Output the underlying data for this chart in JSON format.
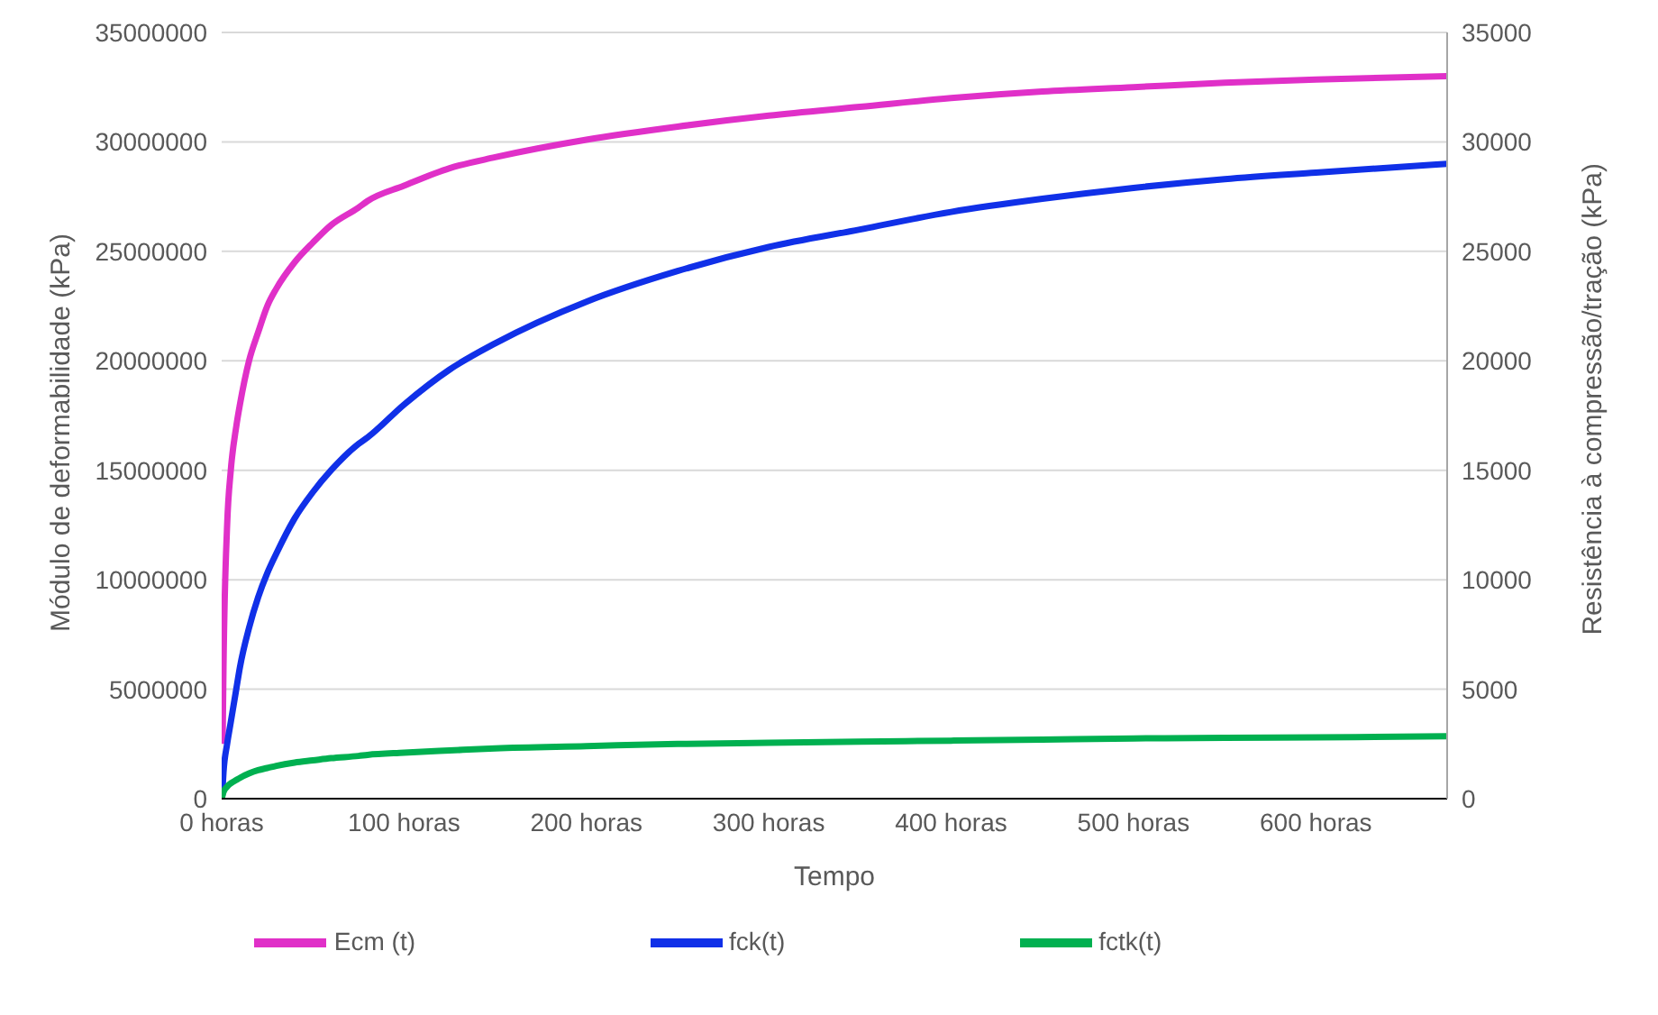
{
  "chart_data": {
    "type": "line",
    "xlabel": "Tempo",
    "ylabel": "Módulo de deformabilidade (kPa)",
    "y2label": "Resistência à compressão/tração (kPa)",
    "x": [
      0,
      0.5,
      1,
      3,
      5,
      8,
      10,
      15,
      20,
      25,
      30,
      40,
      50,
      60,
      75,
      80,
      100,
      125,
      150,
      200,
      250,
      300,
      350,
      400,
      450,
      500,
      550,
      600,
      672
    ],
    "series": [
      {
        "name": "Ecm (t)",
        "color": "#e030c8",
        "values": [
          null,
          2500000,
          6000000,
          12500000,
          15000000,
          17000000,
          18000000,
          20000000,
          21300000,
          22500000,
          23300000,
          24500000,
          25400000,
          26200000,
          27000000,
          27300000,
          28000000,
          28800000,
          29300000,
          30100000,
          30700000,
          31200000,
          31600000,
          32000000,
          32300000,
          32500000,
          32700000,
          32850000,
          33000000
        ]
      },
      {
        "name": "fck(t)",
        "color": "#1030e8",
        "axis": "y2",
        "values": [
          0,
          500,
          1200,
          2500,
          3500,
          5000,
          6000,
          7800,
          9200,
          10300,
          11200,
          12800,
          14000,
          15000,
          16200,
          16500,
          18000,
          19600,
          20800,
          22700,
          24100,
          25200,
          26000,
          26800,
          27400,
          27900,
          28300,
          28600,
          29000
        ]
      },
      {
        "name": "fctk(t)",
        "color": "#00b050",
        "axis": "y2",
        "values": [
          0,
          150,
          300,
          550,
          700,
          850,
          950,
          1150,
          1300,
          1400,
          1500,
          1650,
          1750,
          1850,
          1950,
          2000,
          2100,
          2200,
          2300,
          2400,
          2500,
          2550,
          2600,
          2650,
          2700,
          2750,
          2780,
          2800,
          2850
        ]
      }
    ],
    "xlim": [
      0,
      672
    ],
    "xticks": [
      {
        "value": 0,
        "label": "0 horas"
      },
      {
        "value": 100,
        "label": "100 horas"
      },
      {
        "value": 200,
        "label": "200 horas"
      },
      {
        "value": 300,
        "label": "300 horas"
      },
      {
        "value": 400,
        "label": "400 horas"
      },
      {
        "value": 500,
        "label": "500 horas"
      },
      {
        "value": 600,
        "label": "600 horas"
      }
    ],
    "ylim": [
      0,
      35000000
    ],
    "yticks": [
      0,
      5000000,
      10000000,
      15000000,
      20000000,
      25000000,
      30000000,
      35000000
    ],
    "y2lim": [
      0,
      35000
    ],
    "y2ticks": [
      0,
      5000,
      10000,
      15000,
      20000,
      25000,
      30000,
      35000
    ],
    "grid": "y",
    "legend": "bottom",
    "marker": "none",
    "line_style": "solid"
  }
}
